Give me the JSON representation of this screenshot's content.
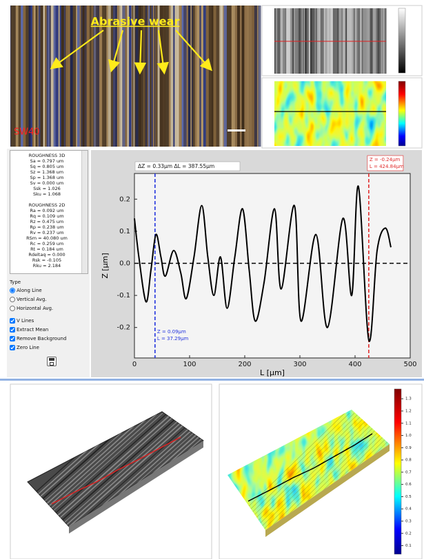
{
  "micrograph": {
    "label": "Abrasive wear",
    "sample": "SW40"
  },
  "roughness": {
    "heading_3d": "ROUGHNESS 3D",
    "items_3d": [
      "Sa = 0.797 um",
      "Sq = 0.805 um",
      "Sz = 1.368 um",
      "Sp = 1.368 um",
      "Sv = 0.000 um",
      "Ssk = 1.026",
      "Sku = 1.068"
    ],
    "heading_2d": "ROUGHNESS 2D",
    "items_2d": [
      "Ra = 0.092 um",
      "Rq = 0.109 um",
      "Rz = 0.475 um",
      "Rp = 0.238 um",
      "Rv = 0.237 um",
      "RSm = 40.080 um",
      "Rc = 0.259 um",
      "Rt = 0.184 um",
      "Rdeltaq = 0.000",
      "Rsk = -0.105",
      "Rku = 2.184"
    ]
  },
  "controls": {
    "type_label": "Type",
    "radio": {
      "options": [
        "Along Line",
        "Vertical Avg.",
        "Horizontal Avg."
      ],
      "selected": 0
    },
    "checkboxes": [
      {
        "label": "V Lines",
        "checked": true
      },
      {
        "label": "Extract Mean",
        "checked": true
      },
      {
        "label": "Remove Background",
        "checked": true
      },
      {
        "label": "Zero Line",
        "checked": true
      }
    ]
  },
  "chart_data": {
    "type": "line",
    "x_label": "L [μm]",
    "y_label": "Z [μm]",
    "x": [
      0,
      8,
      21,
      30,
      39,
      48,
      56,
      71,
      84,
      94,
      108,
      122,
      133,
      144,
      156,
      168,
      182,
      196,
      208,
      219,
      235,
      254,
      266,
      290,
      302,
      329,
      350,
      378,
      394,
      406,
      425,
      440,
      455,
      465
    ],
    "series": [
      {
        "color": "#000000",
        "values": [
          0.14,
          0.02,
          -0.12,
          -0.02,
          0.09,
          0.02,
          -0.04,
          0.04,
          -0.03,
          -0.11,
          0.02,
          0.18,
          0.02,
          -0.1,
          0.02,
          -0.14,
          0.02,
          0.17,
          -0.02,
          -0.18,
          -0.06,
          0.17,
          -0.08,
          0.18,
          -0.18,
          0.09,
          -0.2,
          0.14,
          -0.1,
          0.24,
          -0.24,
          0.04,
          0.11,
          0.05
        ]
      }
    ],
    "xlim": [
      0,
      500
    ],
    "ylim": [
      -0.295,
      0.28
    ],
    "xticks": [
      0,
      100,
      200,
      300,
      400,
      500
    ],
    "yticks": [
      -0.2,
      -0.1,
      {
        "value": 0,
        "label": "0.0"
      },
      0.1,
      0.2
    ],
    "zero_line": true,
    "annotation": "ΔZ = 0.33μm  ΔL = 387.55μm",
    "cursors": [
      {
        "x": 37.29,
        "color": "#2233dd",
        "labels": [
          "Z = 0.09μm",
          "L = 37.29μm"
        ]
      },
      {
        "x": 424.84,
        "color": "#e02b2b",
        "labels": [
          "Z = -0.24μm",
          "L = 424.84μm"
        ]
      }
    ]
  },
  "colorbar": {
    "lim": [
      0.03,
      1.38
    ],
    "ticks": [
      1.3,
      1.2,
      1.1,
      {
        "value": 1,
        "label": "1.0"
      },
      0.9,
      0.8,
      0.7,
      0.6,
      0.5,
      0.4,
      0.3,
      0.2,
      0.1
    ]
  }
}
